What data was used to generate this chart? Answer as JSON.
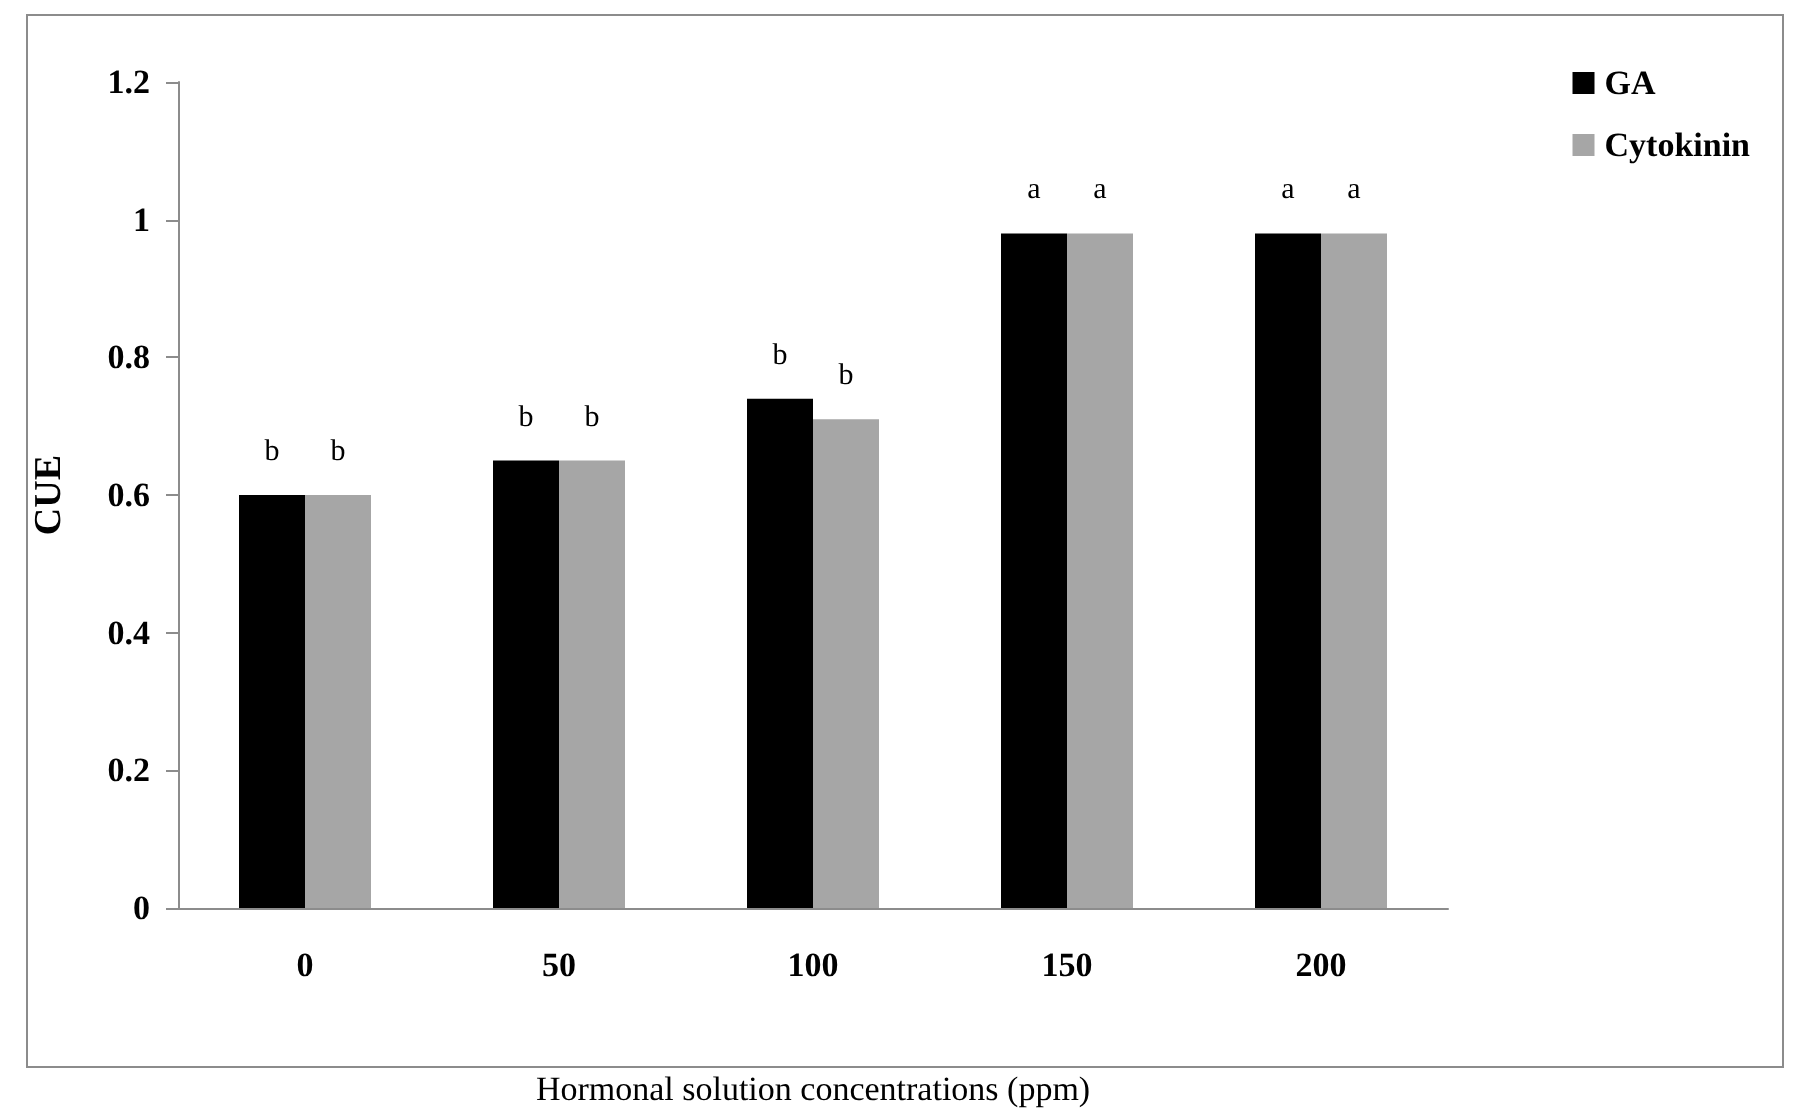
{
  "chart_data": {
    "type": "bar",
    "xlabel": "Hormonal solution concentrations (ppm)",
    "ylabel": "CUE",
    "categories": [
      "0",
      "50",
      "100",
      "150",
      "200"
    ],
    "series": [
      {
        "name": "GA",
        "color": "#000000",
        "values": [
          0.6,
          0.65,
          0.74,
          0.98,
          0.98
        ],
        "value_labels": [
          "b",
          "b",
          "b",
          "a",
          "a"
        ]
      },
      {
        "name": "Cytokinin",
        "color": "#a6a6a6",
        "values": [
          0.6,
          0.65,
          0.71,
          0.98,
          0.98
        ],
        "value_labels": [
          "b",
          "b",
          "b",
          "a",
          "a"
        ]
      }
    ],
    "ylim": [
      0,
      1.2
    ],
    "yticks": [
      0,
      0.2,
      0.4,
      0.6,
      0.8,
      1,
      1.2
    ],
    "grid": false,
    "legend": "top right"
  }
}
